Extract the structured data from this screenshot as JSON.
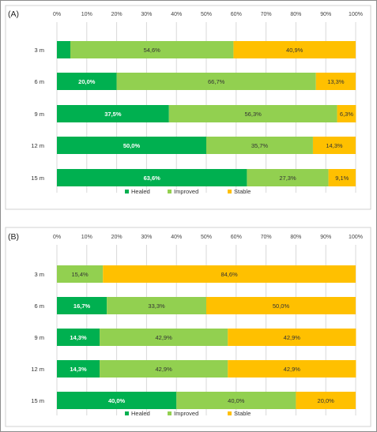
{
  "colors": {
    "healed": "#00B050",
    "improved": "#92D050",
    "stable": "#FFC000",
    "frame": "#8C8C8C",
    "panel_border": "#D0D0D0",
    "grid": "#D9D9D9"
  },
  "chart_data": [
    {
      "type": "bar",
      "orientation": "horizontal",
      "stacked": "percent",
      "panel_label": "(A)",
      "categories": [
        "3 m",
        "6 m",
        "9 m",
        "12 m",
        "15 m"
      ],
      "xlim": [
        0,
        100
      ],
      "x_ticks": [
        "0%",
        "10%",
        "20%",
        "30%",
        "40%",
        "50%",
        "60%",
        "70%",
        "80%",
        "90%",
        "100%"
      ],
      "grid": true,
      "legend_position": "bottom",
      "series": [
        {
          "name": "Healed",
          "color_key": "healed",
          "values": [
            4.5,
            20.0,
            37.5,
            50.0,
            63.6
          ],
          "labels": [
            "",
            "20,0%",
            "37,5%",
            "50,0%",
            "63,6%"
          ]
        },
        {
          "name": "Improved",
          "color_key": "improved",
          "values": [
            54.6,
            66.7,
            56.3,
            35.7,
            27.3
          ],
          "labels": [
            "54,6%",
            "66,7%",
            "56,3%",
            "35,7%",
            "27,3%"
          ]
        },
        {
          "name": "Stable",
          "color_key": "stable",
          "values": [
            40.9,
            13.3,
            6.3,
            14.3,
            9.1
          ],
          "labels": [
            "40,9%",
            "13,3%",
            "6,3%",
            "14,3%",
            "9,1%"
          ]
        }
      ]
    },
    {
      "type": "bar",
      "orientation": "horizontal",
      "stacked": "percent",
      "panel_label": "(B)",
      "categories": [
        "3 m",
        "6 m",
        "9 m",
        "12 m",
        "15 m"
      ],
      "xlim": [
        0,
        100
      ],
      "x_ticks": [
        "0%",
        "10%",
        "20%",
        "30%",
        "40%",
        "50%",
        "60%",
        "70%",
        "80%",
        "90%",
        "100%"
      ],
      "grid": true,
      "legend_position": "bottom",
      "series": [
        {
          "name": "Healed",
          "color_key": "healed",
          "values": [
            0.0,
            16.7,
            14.3,
            14.3,
            40.0
          ],
          "labels": [
            "",
            "16,7%",
            "14,3%",
            "14,3%",
            "40,0%"
          ]
        },
        {
          "name": "Improved",
          "color_key": "improved",
          "values": [
            15.4,
            33.3,
            42.9,
            42.9,
            40.0
          ],
          "labels": [
            "15,4%",
            "33,3%",
            "42,9%",
            "42,9%",
            "40,0%"
          ]
        },
        {
          "name": "Stable",
          "color_key": "stable",
          "values": [
            84.6,
            50.0,
            42.9,
            42.9,
            20.0
          ],
          "labels": [
            "84,6%",
            "50,0%",
            "42,9%",
            "42,9%",
            "20,0%"
          ]
        }
      ]
    }
  ]
}
